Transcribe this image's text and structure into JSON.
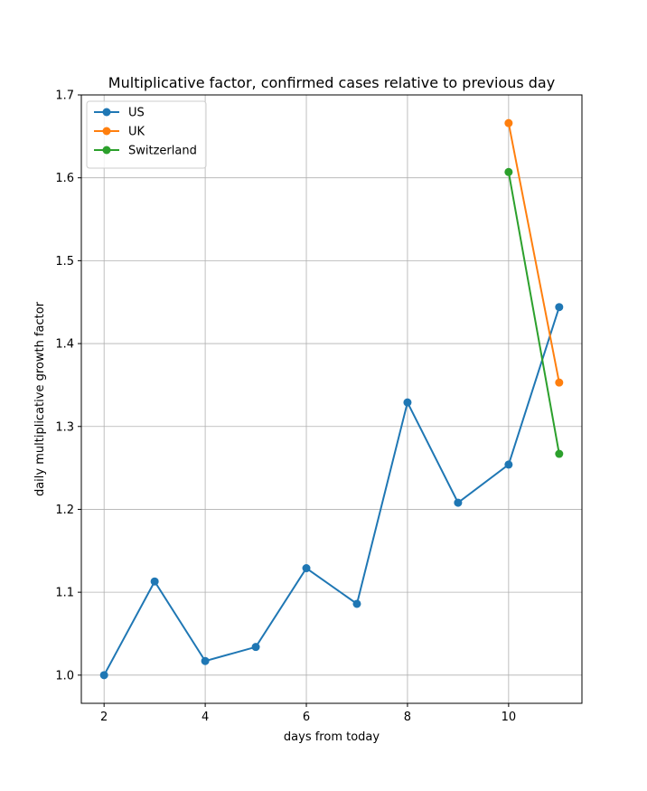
{
  "chart_data": {
    "type": "line",
    "title": "Multiplicative factor, confirmed cases relative to previous day",
    "xlabel": "days from today",
    "ylabel": "daily multiplicative growth factor",
    "xlim": [
      1.55,
      11.45
    ],
    "ylim": [
      0.966,
      1.7
    ],
    "xticks": [
      2,
      4,
      6,
      8,
      10
    ],
    "yticks": [
      1.0,
      1.1,
      1.2,
      1.3,
      1.4,
      1.5,
      1.6,
      1.7
    ],
    "ytick_labels": [
      "1.0",
      "1.1",
      "1.2",
      "1.3",
      "1.4",
      "1.5",
      "1.6",
      "1.7"
    ],
    "grid": true,
    "legend_position": "top-left",
    "series": [
      {
        "name": "US",
        "color": "#1f77b4",
        "x": [
          2,
          3,
          4,
          5,
          6,
          7,
          8,
          9,
          10,
          11
        ],
        "values": [
          1.0,
          1.113,
          1.017,
          1.034,
          1.129,
          1.086,
          1.329,
          1.208,
          1.254,
          1.444
        ]
      },
      {
        "name": "UK",
        "color": "#ff7f0e",
        "x": [
          10,
          11
        ],
        "values": [
          1.666,
          1.353
        ]
      },
      {
        "name": "Switzerland",
        "color": "#2ca02c",
        "x": [
          10,
          11
        ],
        "values": [
          1.607,
          1.267
        ]
      }
    ]
  }
}
